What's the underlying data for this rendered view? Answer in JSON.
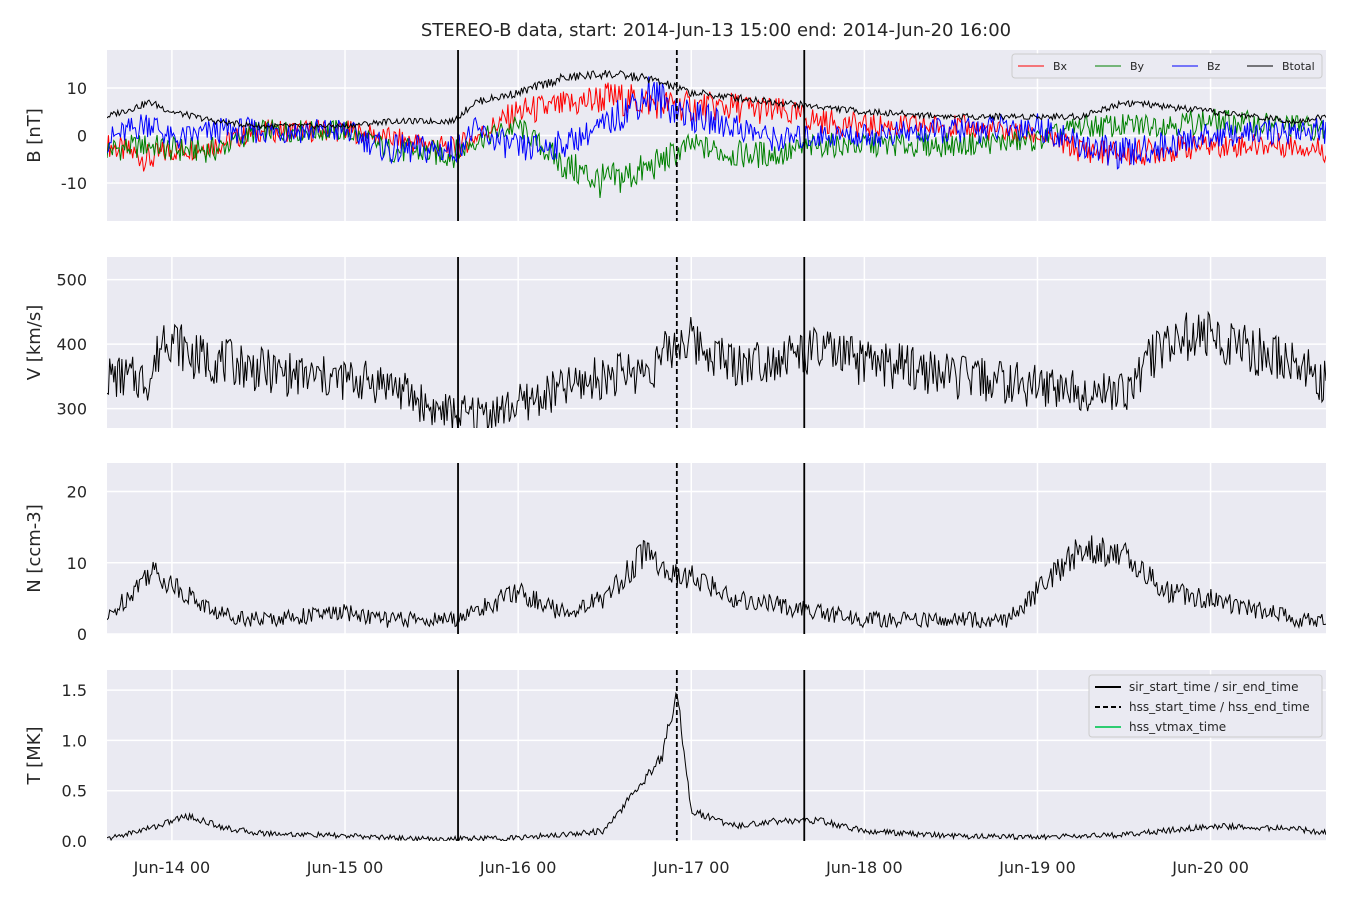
{
  "figure": {
    "title": "STEREO-B data, start: 2014-Jun-13 15:00  end: 2014-Jun-20 16:00"
  },
  "chart_data": [
    {
      "type": "line",
      "panel": "B",
      "ylabel": "B [nT]",
      "ylim": [
        -18,
        18
      ],
      "yticks": [
        -10,
        0,
        10
      ],
      "xlim": [
        "2014-06-13 15:00",
        "2014-06-20 16:00"
      ],
      "xticks": [
        "2014-06-14 00:00",
        "2014-06-15 00:00",
        "2014-06-16 00:00",
        "2014-06-17 00:00",
        "2014-06-18 00:00",
        "2014-06-19 00:00",
        "2014-06-20 00:00"
      ],
      "xticklabels": [
        "Jun-14 00",
        "Jun-15 00",
        "Jun-16 00",
        "Jun-17 00",
        "Jun-18 00",
        "Jun-19 00",
        "Jun-20 00"
      ],
      "grid": true,
      "legend": "top-right",
      "series": [
        {
          "name": "Bx",
          "color": "#ff0000",
          "x": [
            "2014-06-13 15:00",
            "2014-06-13 21:00",
            "2014-06-14 00:00",
            "2014-06-14 06:00",
            "2014-06-14 12:00",
            "2014-06-15 00:00",
            "2014-06-15 12:00",
            "2014-06-15 15:00",
            "2014-06-16 00:00",
            "2014-06-16 06:00",
            "2014-06-16 12:00",
            "2014-06-16 18:00",
            "2014-06-17 00:00",
            "2014-06-17 06:00",
            "2014-06-17 12:00",
            "2014-06-17 18:00",
            "2014-06-18 00:00",
            "2014-06-18 12:00",
            "2014-06-19 00:00",
            "2014-06-19 06:00",
            "2014-06-19 12:00",
            "2014-06-20 00:00",
            "2014-06-20 12:00",
            "2014-06-20 16:00"
          ],
          "values": [
            -2,
            -5,
            -3,
            -2,
            1,
            1,
            -2,
            -3,
            5,
            6,
            8,
            7,
            6,
            6,
            5,
            3,
            2,
            2,
            0,
            -3,
            -4,
            -2,
            -2,
            -3
          ]
        },
        {
          "name": "By",
          "color": "#008000",
          "x": [
            "2014-06-13 15:00",
            "2014-06-13 21:00",
            "2014-06-14 00:00",
            "2014-06-14 06:00",
            "2014-06-14 12:00",
            "2014-06-15 00:00",
            "2014-06-15 06:00",
            "2014-06-15 15:00",
            "2014-06-15 18:00",
            "2014-06-16 00:00",
            "2014-06-16 06:00",
            "2014-06-16 12:00",
            "2014-06-16 18:00",
            "2014-06-17 00:00",
            "2014-06-17 06:00",
            "2014-06-17 12:00",
            "2014-06-17 18:00",
            "2014-06-18 00:00",
            "2014-06-18 12:00",
            "2014-06-19 00:00",
            "2014-06-19 06:00",
            "2014-06-19 12:00",
            "2014-06-20 00:00",
            "2014-06-20 12:00",
            "2014-06-20 16:00"
          ],
          "values": [
            -3,
            -2,
            -3,
            -3,
            1,
            1,
            -3,
            -4,
            -1,
            2,
            -6,
            -10,
            -7,
            -2,
            -4,
            -4,
            -2,
            -2,
            -2,
            -1,
            2,
            2,
            3,
            2,
            1
          ]
        },
        {
          "name": "Bz",
          "color": "#0000ff",
          "x": [
            "2014-06-13 15:00",
            "2014-06-13 21:00",
            "2014-06-14 00:00",
            "2014-06-14 06:00",
            "2014-06-14 12:00",
            "2014-06-15 00:00",
            "2014-06-15 06:00",
            "2014-06-15 15:00",
            "2014-06-15 18:00",
            "2014-06-16 00:00",
            "2014-06-16 06:00",
            "2014-06-16 12:00",
            "2014-06-16 18:00",
            "2014-06-17 00:00",
            "2014-06-17 06:00",
            "2014-06-17 12:00",
            "2014-06-17 18:00",
            "2014-06-18 00:00",
            "2014-06-18 12:00",
            "2014-06-19 00:00",
            "2014-06-19 06:00",
            "2014-06-19 12:00",
            "2014-06-20 00:00",
            "2014-06-20 12:00",
            "2014-06-20 16:00"
          ],
          "values": [
            -1,
            3,
            -1,
            1,
            1,
            1,
            -3,
            -3,
            1,
            -3,
            -2,
            2,
            9,
            4,
            2,
            -1,
            0,
            0,
            1,
            2,
            -2,
            -4,
            0,
            1,
            1
          ]
        },
        {
          "name": "Btotal",
          "color": "#000000",
          "x": [
            "2014-06-13 15:00",
            "2014-06-13 21:00",
            "2014-06-14 00:00",
            "2014-06-14 06:00",
            "2014-06-14 12:00",
            "2014-06-15 00:00",
            "2014-06-15 06:00",
            "2014-06-15 15:00",
            "2014-06-15 18:00",
            "2014-06-16 00:00",
            "2014-06-16 06:00",
            "2014-06-16 12:00",
            "2014-06-16 18:00",
            "2014-06-17 00:00",
            "2014-06-17 06:00",
            "2014-06-17 12:00",
            "2014-06-17 18:00",
            "2014-06-18 00:00",
            "2014-06-18 12:00",
            "2014-06-19 00:00",
            "2014-06-19 06:00",
            "2014-06-19 12:00",
            "2014-06-20 00:00",
            "2014-06-20 12:00",
            "2014-06-20 16:00"
          ],
          "values": [
            4,
            7,
            5,
            3,
            2,
            2,
            3,
            3,
            7,
            9,
            12,
            13,
            12,
            9,
            8,
            7,
            6,
            5,
            4,
            4,
            4,
            7,
            5,
            3,
            4
          ]
        }
      ]
    },
    {
      "type": "line",
      "panel": "V",
      "ylabel": "V [km/s]",
      "ylim": [
        270,
        535
      ],
      "yticks": [
        300,
        400,
        500
      ],
      "grid": true,
      "series": [
        {
          "name": "V",
          "color": "#000000",
          "x": [
            "2014-06-13 15:00",
            "2014-06-13 21:00",
            "2014-06-13 23:00",
            "2014-06-14 03:00",
            "2014-06-14 09:00",
            "2014-06-14 12:00",
            "2014-06-14 18:00",
            "2014-06-15 00:00",
            "2014-06-15 06:00",
            "2014-06-15 12:00",
            "2014-06-15 16:00",
            "2014-06-15 22:00",
            "2014-06-16 06:00",
            "2014-06-16 12:00",
            "2014-06-16 18:00",
            "2014-06-16 23:00",
            "2014-06-17 06:00",
            "2014-06-17 12:00",
            "2014-06-17 18:00",
            "2014-06-18 00:00",
            "2014-06-18 06:00",
            "2014-06-18 12:00",
            "2014-06-19 00:00",
            "2014-06-19 06:00",
            "2014-06-19 12:00",
            "2014-06-19 18:00",
            "2014-06-20 00:00",
            "2014-06-20 12:00",
            "2014-06-20 16:00"
          ],
          "values": [
            350,
            345,
            420,
            380,
            370,
            360,
            350,
            345,
            340,
            300,
            290,
            298,
            330,
            350,
            360,
            410,
            370,
            380,
            390,
            370,
            365,
            350,
            335,
            330,
            325,
            410,
            410,
            370,
            340
          ]
        }
      ]
    },
    {
      "type": "line",
      "panel": "N",
      "ylabel": "N [ccm-3]",
      "ylim": [
        0,
        24
      ],
      "yticks": [
        0,
        10,
        20
      ],
      "grid": true,
      "series": [
        {
          "name": "N",
          "color": "#000000",
          "x": [
            "2014-06-13 15:00",
            "2014-06-13 21:00",
            "2014-06-14 00:00",
            "2014-06-14 06:00",
            "2014-06-14 12:00",
            "2014-06-15 00:00",
            "2014-06-15 06:00",
            "2014-06-15 15:00",
            "2014-06-15 20:00",
            "2014-06-16 00:00",
            "2014-06-16 06:00",
            "2014-06-16 12:00",
            "2014-06-16 18:00",
            "2014-06-16 21:00",
            "2014-06-17 00:00",
            "2014-06-17 06:00",
            "2014-06-17 12:00",
            "2014-06-17 18:00",
            "2014-06-18 00:00",
            "2014-06-18 12:00",
            "2014-06-18 20:00",
            "2014-06-19 00:00",
            "2014-06-19 06:00",
            "2014-06-19 12:00",
            "2014-06-19 18:00",
            "2014-06-20 00:00",
            "2014-06-20 12:00",
            "2014-06-20 16:00"
          ],
          "values": [
            2,
            9,
            7,
            3,
            2,
            3,
            2,
            2,
            4,
            6,
            3,
            5,
            12,
            8,
            8,
            5,
            4,
            3,
            2,
            2,
            2,
            6,
            12,
            11,
            6,
            5,
            2,
            2
          ]
        }
      ]
    },
    {
      "type": "line",
      "panel": "T",
      "ylabel": "T [MK]",
      "ylim": [
        0,
        1.7
      ],
      "yticks": [
        0.0,
        0.5,
        1.0,
        1.5
      ],
      "yticklabels": [
        "0.0",
        "0.5",
        "1.0",
        "1.5"
      ],
      "grid": true,
      "legend": "top-right",
      "series": [
        {
          "name": "T",
          "color": "#000000",
          "x": [
            "2014-06-13 15:00",
            "2014-06-13 22:00",
            "2014-06-14 02:00",
            "2014-06-14 08:00",
            "2014-06-14 12:00",
            "2014-06-15 00:00",
            "2014-06-15 12:00",
            "2014-06-16 00:00",
            "2014-06-16 12:00",
            "2014-06-16 20:00",
            "2014-06-16 22:00",
            "2014-06-17 00:00",
            "2014-06-17 06:00",
            "2014-06-17 12:00",
            "2014-06-17 18:00",
            "2014-06-18 00:00",
            "2014-06-18 12:00",
            "2014-06-19 00:00",
            "2014-06-19 12:00",
            "2014-06-20 00:00",
            "2014-06-20 12:00",
            "2014-06-20 16:00"
          ],
          "values": [
            0.02,
            0.15,
            0.25,
            0.12,
            0.08,
            0.05,
            0.02,
            0.03,
            0.1,
            0.85,
            1.5,
            0.3,
            0.15,
            0.2,
            0.2,
            0.1,
            0.05,
            0.04,
            0.06,
            0.15,
            0.12,
            0.08
          ]
        }
      ],
      "markers": [
        {
          "name": "sir_start_time / sir_end_time",
          "style": "solid",
          "color": "#000000",
          "x": [
            "2014-06-15 15:40",
            "2014-06-17 15:40"
          ]
        },
        {
          "name": "hss_start_time / hss_end_time",
          "style": "dashed",
          "color": "#000000",
          "x": [
            "2014-06-16 22:00"
          ]
        },
        {
          "name": "hss_vtmax_time",
          "style": "solid",
          "color": "#2ecc71",
          "x": []
        }
      ]
    }
  ]
}
